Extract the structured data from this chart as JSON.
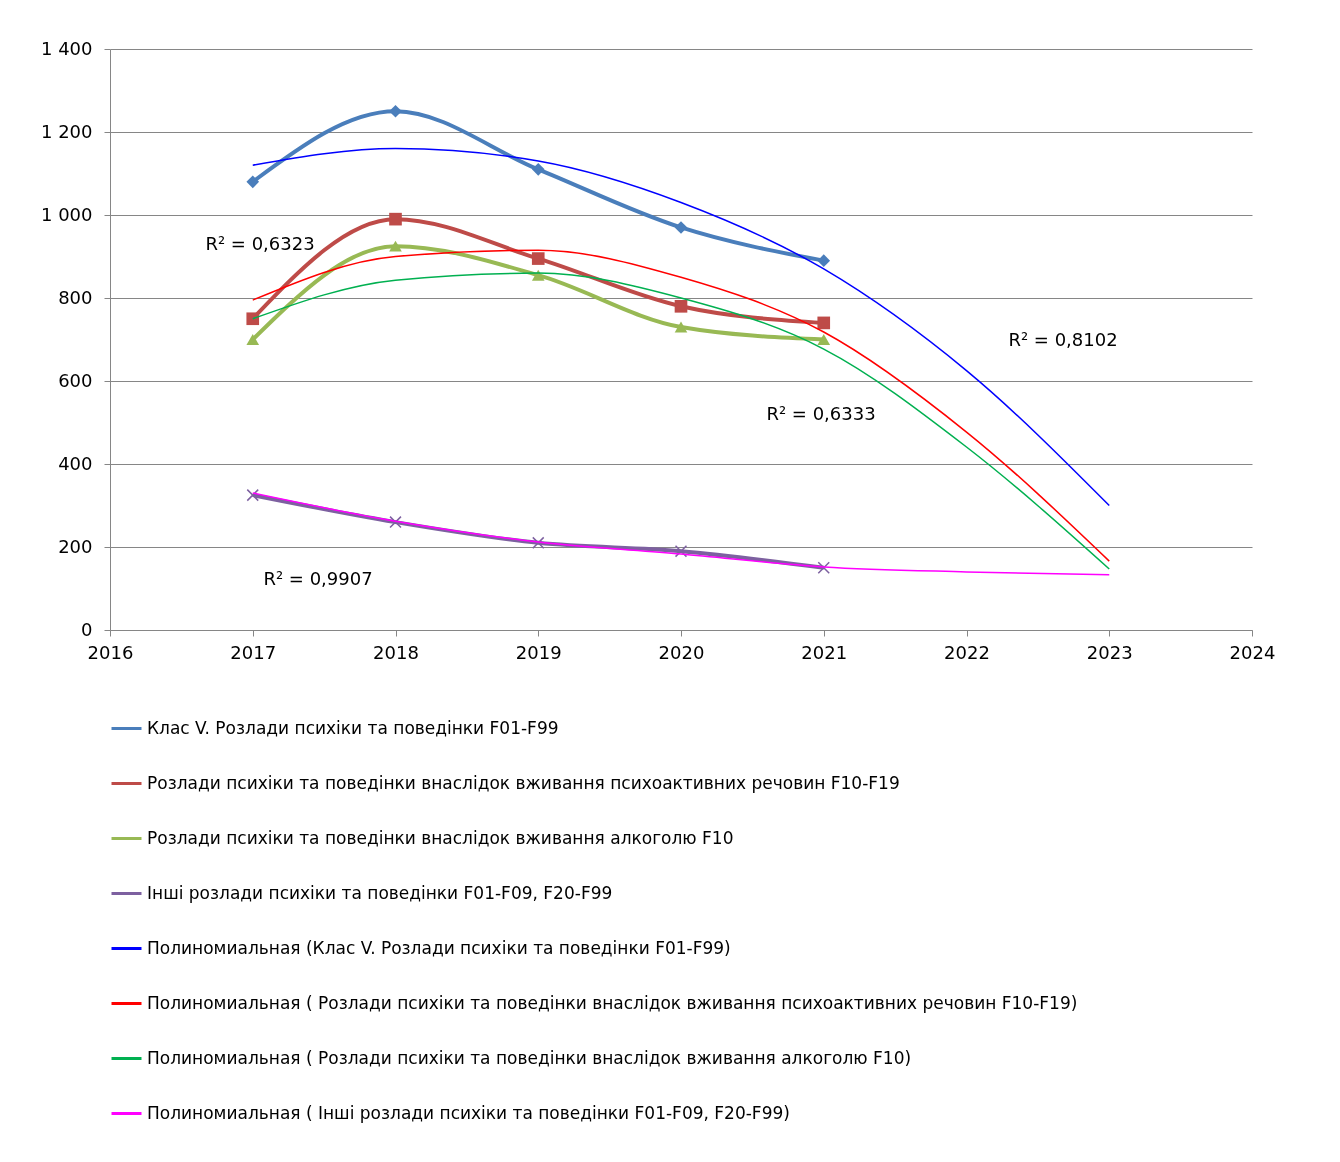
{
  "chart_data": {
    "type": "line",
    "x": [
      2017,
      2018,
      2019,
      2020,
      2021
    ],
    "xlim": [
      2016,
      2024
    ],
    "xticks": [
      2016,
      2017,
      2018,
      2019,
      2020,
      2021,
      2022,
      2023,
      2024
    ],
    "ylim": [
      0,
      1400
    ],
    "yticks": [
      0,
      200,
      400,
      600,
      800,
      {
        "value": 1000,
        "label": "1 000"
      },
      {
        "value": 1200,
        "label": "1 200"
      },
      {
        "value": 1400,
        "label": "1 400"
      }
    ],
    "grid": "y",
    "legend": "bottom",
    "line_style": "solid",
    "series": [
      {
        "name": "Клас V. Розлади психіки та поведінки F01-F99",
        "color": "#4a7ebb",
        "marker": "diamond",
        "values": [
          1080,
          1250,
          1110,
          970,
          890
        ]
      },
      {
        "name": "Розлади психіки та поведінки внаслідок вживання психоактивних речовин F10-F19",
        "color": "#be4b48",
        "marker": "square",
        "values": [
          750,
          990,
          895,
          780,
          740
        ]
      },
      {
        "name": "Розлади психіки та поведінки внаслідок вживання алкоголю F10",
        "color": "#98b954",
        "marker": "triangle",
        "values": [
          700,
          925,
          855,
          730,
          700
        ]
      },
      {
        "name": "Інші розлади психіки та поведінки F01-F09, F20-F99",
        "color": "#7d60a0",
        "marker": "cross",
        "values": [
          325,
          260,
          210,
          190,
          150
        ]
      },
      {
        "name": "Полиномиальная (Клас V. Розлади психіки та поведінки F01-F99)",
        "color": "#0000ff",
        "marker": "none",
        "x": [
          2017,
          2018,
          2019,
          2020,
          2021,
          2022,
          2023
        ],
        "values": [
          1120,
          1160,
          1130,
          1030,
          870,
          625,
          300
        ]
      },
      {
        "name": "Полиномиальная ( Розлади психіки та поведінки внаслідок вживання психоактивних речовин F10-F19)",
        "color": "#ff0000",
        "marker": "none",
        "x": [
          2017,
          2018,
          2019,
          2020,
          2021,
          2022,
          2023
        ],
        "values": [
          795,
          900,
          915,
          850,
          718,
          477,
          166
        ]
      },
      {
        "name": "Полиномиальная (  Розлади психіки та поведінки внаслідок вживання алкоголю F10)",
        "color": "#00b050",
        "marker": "none",
        "x": [
          2017,
          2018,
          2019,
          2020,
          2021,
          2022,
          2023
        ],
        "values": [
          750,
          843,
          860,
          800,
          677,
          441,
          147
        ]
      },
      {
        "name": "Полиномиальная ( Інші розлади психіки та поведінки F01-F09, F20-F99)",
        "color": "#ff00ff",
        "marker": "none",
        "x": [
          2017,
          2018,
          2019,
          2020,
          2021,
          2022,
          2023
        ],
        "values": [
          330,
          262,
          212,
          183,
          152,
          140,
          133
        ]
      }
    ],
    "annotations": [
      "R² = 0,6323",
      "R² = 0,8102",
      "R² = 0,6333",
      "R² = 0,9907"
    ]
  }
}
